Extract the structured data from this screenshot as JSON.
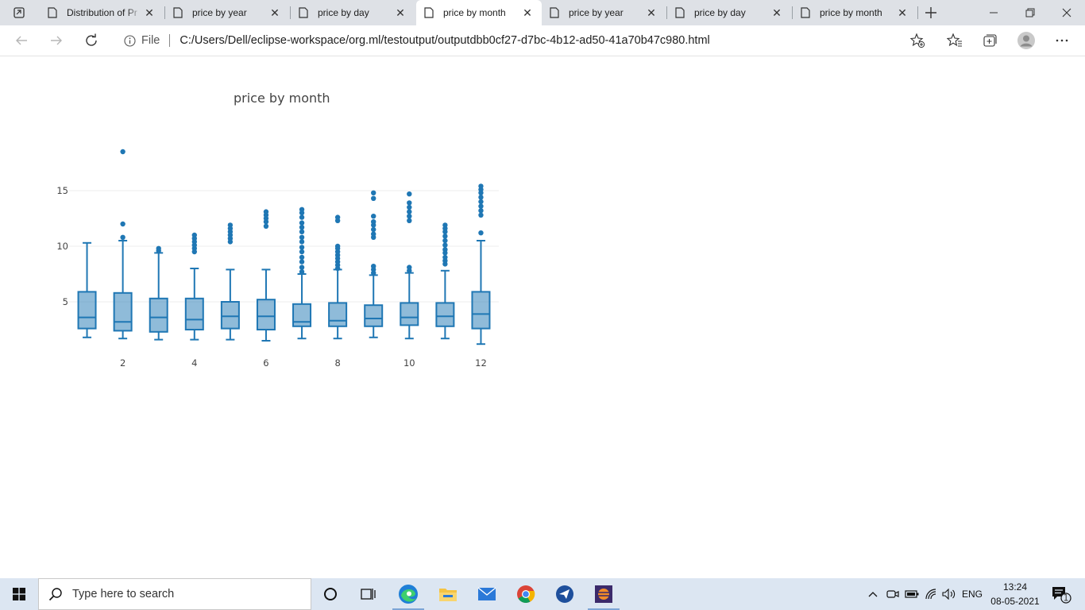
{
  "browser": {
    "tabs": [
      {
        "label": "Distribution of Pr",
        "active": false
      },
      {
        "label": "price by year",
        "active": false
      },
      {
        "label": "price by day",
        "active": false
      },
      {
        "label": "price by month",
        "active": true
      },
      {
        "label": "price by year",
        "active": false
      },
      {
        "label": "price by day",
        "active": false
      },
      {
        "label": "price by month",
        "active": false
      }
    ],
    "address": {
      "site_label": "File",
      "url": "C:/Users/Dell/eclipse-workspace/org.ml/testoutput/outputdbb0cf27-d7bc-4b12-ad50-41a70b47c980.html"
    }
  },
  "chart_data": {
    "type": "box",
    "title": "price by month",
    "xlabel": "",
    "ylabel": "",
    "x_ticks": [
      2,
      4,
      6,
      8,
      10,
      12
    ],
    "y_ticks": [
      5,
      10,
      15
    ],
    "xlim": [
      0.5,
      12.5
    ],
    "ylim": [
      0,
      20
    ],
    "grid": true,
    "color": "#1f77b4",
    "boxes": [
      {
        "month": 1,
        "lower_fence": 1.8,
        "q1": 2.6,
        "median": 3.6,
        "q3": 5.9,
        "upper_fence": 10.3,
        "outliers": []
      },
      {
        "month": 2,
        "lower_fence": 1.7,
        "q1": 2.4,
        "median": 3.2,
        "q3": 5.8,
        "upper_fence": 10.5,
        "outliers": [
          10.8,
          12.0,
          18.5
        ]
      },
      {
        "month": 3,
        "lower_fence": 1.6,
        "q1": 2.3,
        "median": 3.6,
        "q3": 5.3,
        "upper_fence": 9.4,
        "outliers": [
          9.6,
          9.8
        ]
      },
      {
        "month": 4,
        "lower_fence": 1.6,
        "q1": 2.5,
        "median": 3.4,
        "q3": 5.3,
        "upper_fence": 8.0,
        "outliers": [
          9.5,
          9.8,
          10.1,
          10.4,
          10.7,
          11.0
        ]
      },
      {
        "month": 5,
        "lower_fence": 1.6,
        "q1": 2.6,
        "median": 3.7,
        "q3": 5.0,
        "upper_fence": 7.9,
        "outliers": [
          10.4,
          10.7,
          11.0,
          11.3,
          11.6,
          11.9
        ]
      },
      {
        "month": 6,
        "lower_fence": 1.5,
        "q1": 2.5,
        "median": 3.7,
        "q3": 5.2,
        "upper_fence": 7.9,
        "outliers": [
          11.8,
          12.2,
          12.5,
          12.8,
          13.1
        ]
      },
      {
        "month": 7,
        "lower_fence": 1.7,
        "q1": 2.8,
        "median": 3.2,
        "q3": 4.8,
        "upper_fence": 7.5,
        "outliers": [
          7.7,
          8.1,
          8.6,
          9.0,
          9.5,
          9.9,
          10.4,
          10.8,
          11.3,
          11.7,
          12.1,
          12.6,
          13.0,
          13.3
        ]
      },
      {
        "month": 8,
        "lower_fence": 1.7,
        "q1": 2.8,
        "median": 3.3,
        "q3": 4.9,
        "upper_fence": 7.9,
        "outliers": [
          8.0,
          8.3,
          8.6,
          8.9,
          9.2,
          9.5,
          9.8,
          10.0,
          12.3,
          12.6
        ]
      },
      {
        "month": 9,
        "lower_fence": 1.8,
        "q1": 2.8,
        "median": 3.5,
        "q3": 4.7,
        "upper_fence": 7.4,
        "outliers": [
          7.6,
          7.9,
          8.2,
          10.8,
          11.1,
          11.5,
          11.9,
          12.2,
          12.7,
          14.3,
          14.8
        ]
      },
      {
        "month": 10,
        "lower_fence": 1.7,
        "q1": 2.9,
        "median": 3.6,
        "q3": 4.9,
        "upper_fence": 7.6,
        "outliers": [
          7.8,
          8.1,
          12.3,
          12.7,
          13.1,
          13.5,
          13.9,
          14.7
        ]
      },
      {
        "month": 11,
        "lower_fence": 1.7,
        "q1": 2.8,
        "median": 3.7,
        "q3": 4.9,
        "upper_fence": 7.8,
        "outliers": [
          8.4,
          8.7,
          9.0,
          9.4,
          9.7,
          10.1,
          10.5,
          10.9,
          11.3,
          11.6,
          11.9
        ]
      },
      {
        "month": 12,
        "lower_fence": 1.2,
        "q1": 2.6,
        "median": 3.9,
        "q3": 5.9,
        "upper_fence": 10.5,
        "outliers": [
          11.2,
          12.8,
          13.2,
          13.6,
          14.0,
          14.4,
          14.8,
          15.1,
          15.4
        ]
      }
    ]
  },
  "taskbar": {
    "search_placeholder": "Type here to search",
    "language": "ENG",
    "time": "13:24",
    "date": "08-05-2021",
    "notification_count": "1"
  }
}
